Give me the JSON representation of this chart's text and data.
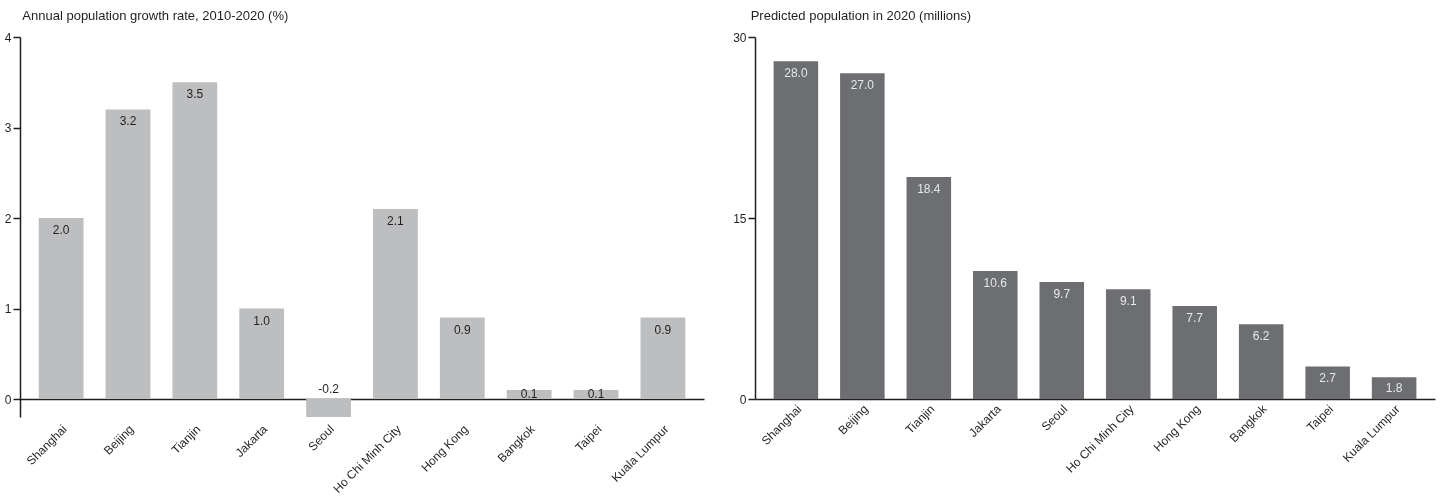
{
  "chart_data": [
    {
      "type": "bar",
      "title": "Annual population growth rate, 2010-2020 (%)",
      "categories": [
        "Shanghai",
        "Beijing",
        "Tianjin",
        "Jakarta",
        "Seoul",
        "Ho Chi Minh City",
        "Hong Kong",
        "Bangkok",
        "Taipei",
        "Kuala Lumpur"
      ],
      "values": [
        2.0,
        3.2,
        3.5,
        1.0,
        -0.2,
        2.1,
        0.9,
        0.1,
        0.1,
        0.9
      ],
      "value_labels": [
        "2.0",
        "3.2",
        "3.5",
        "1.0",
        "-0.2",
        "2.1",
        "0.9",
        "0.1",
        "0.1",
        "0.9"
      ],
      "color": "#bcbec0",
      "ylim": [
        -0.2,
        4
      ],
      "yticks": [
        0,
        1,
        2,
        3,
        4
      ]
    },
    {
      "type": "bar",
      "title": "Predicted population in 2020 (millions)",
      "categories": [
        "Shanghai",
        "Beijing",
        "Tianjin",
        "Jakarta",
        "Seoul",
        "Ho Chi Minh City",
        "Hong Kong",
        "Bangkok",
        "Taipei",
        "Kuala Lumpur"
      ],
      "values": [
        28.0,
        27.0,
        18.4,
        10.6,
        9.7,
        9.1,
        7.7,
        6.2,
        2.7,
        1.8
      ],
      "value_labels": [
        "28.0",
        "27.0",
        "18.4",
        "10.6",
        "9.7",
        "9.1",
        "7.7",
        "6.2",
        "2.7",
        "1.8"
      ],
      "color": "#6d6e71",
      "ylim": [
        0,
        30
      ],
      "yticks": [
        0,
        15,
        30
      ]
    }
  ]
}
